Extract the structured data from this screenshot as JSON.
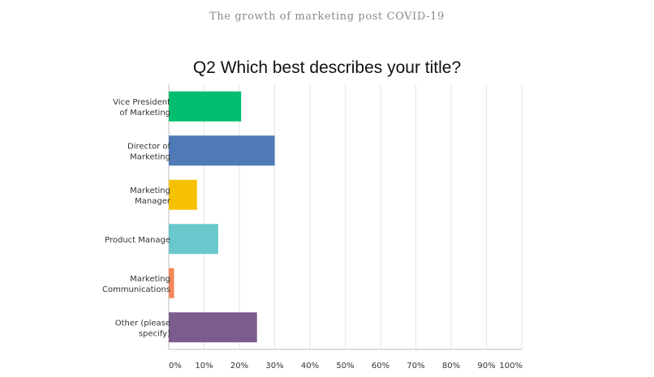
{
  "header": {
    "title": "The growth of marketing post COVID-19"
  },
  "chart_data": {
    "type": "bar",
    "orientation": "horizontal",
    "title": "Q2 Which best describes your title?",
    "categories": [
      [
        "Vice President",
        "of Marketing"
      ],
      [
        "Director of",
        "Marketing"
      ],
      [
        "Marketing",
        "Manager"
      ],
      [
        "Product Manage"
      ],
      [
        "Marketing",
        "Communications"
      ],
      [
        "Other (please",
        "specify)"
      ]
    ],
    "values": [
      20.5,
      30,
      8,
      14,
      1.5,
      25
    ],
    "colors": [
      "#00be6e",
      "#4f7ab6",
      "#f6c100",
      "#6ac8cc",
      "#f4875a",
      "#7c5b8f"
    ],
    "x_ticks": [
      "0%",
      "10%",
      "20%",
      "30%",
      "40%",
      "50%",
      "60%",
      "70%",
      "80%",
      "90%",
      "100%"
    ],
    "xlim": [
      0,
      100
    ],
    "grid": true,
    "legend": "none"
  }
}
